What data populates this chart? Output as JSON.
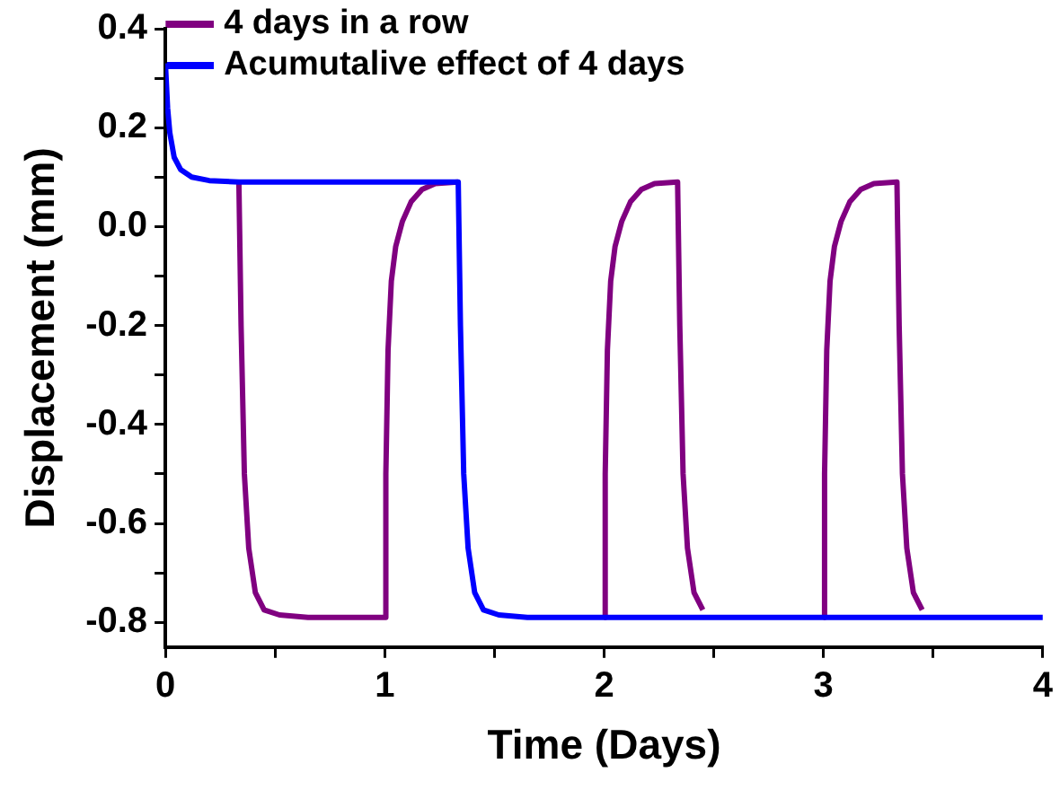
{
  "chart_data": {
    "type": "line",
    "xlabel": "Time (Days)",
    "ylabel": "Displacement (mm)",
    "xlim": [
      0,
      4
    ],
    "xticks": [
      0,
      {
        "value": 0.5,
        "label": null
      },
      1,
      {
        "value": 1.5,
        "label": null
      },
      2,
      {
        "value": 2.5,
        "label": null
      },
      3,
      {
        "value": 3.5,
        "label": null
      },
      4
    ],
    "ylim": [
      -0.85,
      0.4
    ],
    "yticks": [
      -0.8,
      {
        "value": -0.7,
        "label": null
      },
      -0.6,
      {
        "value": -0.5,
        "label": null
      },
      -0.4,
      {
        "value": -0.3,
        "label": null
      },
      -0.2,
      {
        "value": -0.1,
        "label": null
      },
      {
        "value": 0,
        "label": "0.0"
      },
      {
        "value": 0.1,
        "label": null
      },
      0.2,
      {
        "value": 0.3,
        "label": null
      },
      0.4
    ],
    "grid": false,
    "legend": "top left",
    "marker": "none",
    "line_style": "solid",
    "series": [
      {
        "name": "4 days in a row",
        "color": "#800080",
        "x": [
          0.335,
          0.345,
          0.36,
          0.38,
          0.41,
          0.45,
          0.52,
          0.65,
          1.0,
          1.005,
          1.015,
          1.03,
          1.05,
          1.08,
          1.12,
          1.17,
          1.23,
          1.335,
          1.5,
          2.0,
          2.005,
          2.015,
          2.03,
          2.05,
          2.08,
          2.12,
          2.17,
          2.23,
          2.335,
          2.345,
          2.36,
          2.38,
          2.41,
          2.45,
          2.5,
          3.0,
          3.005,
          3.015,
          3.03,
          3.05,
          3.08,
          3.12,
          3.17,
          3.23,
          3.335,
          3.345,
          3.36,
          3.38,
          3.41,
          3.45
        ],
        "values": [
          0.09,
          -0.2,
          -0.5,
          -0.65,
          -0.74,
          -0.775,
          -0.785,
          -0.79,
          -0.79,
          -0.5,
          -0.25,
          -0.11,
          -0.04,
          0.01,
          0.05,
          0.075,
          0.087,
          0.09,
          null,
          -0.79,
          -0.5,
          -0.25,
          -0.11,
          -0.04,
          0.01,
          0.05,
          0.075,
          0.087,
          0.09,
          -0.2,
          -0.5,
          -0.65,
          -0.74,
          -0.775,
          null,
          -0.79,
          -0.5,
          -0.25,
          -0.11,
          -0.04,
          0.01,
          0.05,
          0.075,
          0.087,
          0.09,
          -0.2,
          -0.5,
          -0.65,
          -0.74,
          -0.775
        ]
      },
      {
        "name": "Acumutalive effect of 4 days",
        "color": "#0000ff",
        "x": [
          0,
          0.01,
          0.02,
          0.04,
          0.07,
          0.12,
          0.2,
          0.335,
          1.335,
          1.345,
          1.36,
          1.38,
          1.41,
          1.45,
          1.52,
          1.65,
          4.0
        ],
        "values": [
          0.33,
          0.24,
          0.19,
          0.14,
          0.115,
          0.1,
          0.093,
          0.09,
          0.09,
          -0.2,
          -0.5,
          -0.65,
          -0.74,
          -0.775,
          -0.785,
          -0.79,
          -0.79
        ]
      }
    ]
  }
}
